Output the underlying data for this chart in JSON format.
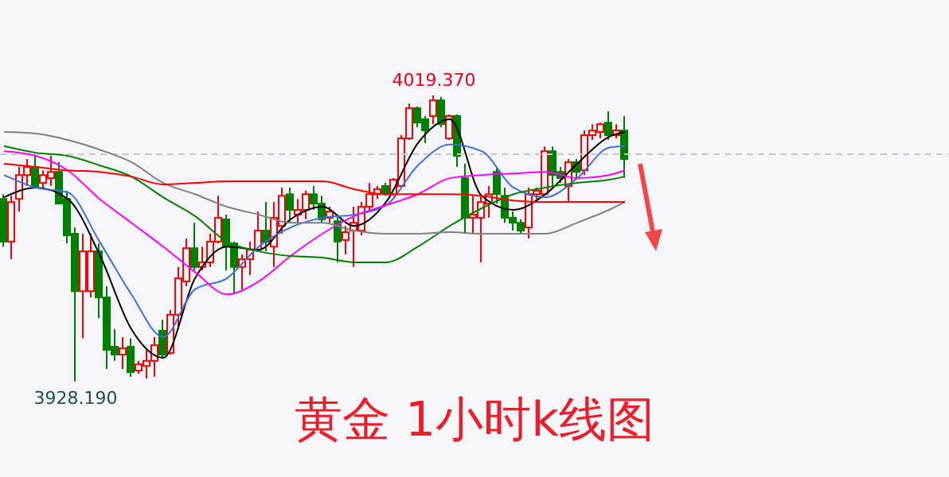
{
  "chart_data": {
    "type": "candlestick",
    "title": "黄金 1小时k线图",
    "categories": [
      null,
      null,
      null,
      null,
      null,
      null,
      null,
      null,
      null,
      null,
      null,
      null,
      null,
      null,
      null,
      null,
      null,
      null,
      null,
      null,
      null,
      null,
      null,
      null,
      null,
      null,
      null,
      null,
      null,
      null,
      null,
      null,
      null,
      null,
      null,
      null,
      null,
      null,
      null,
      null,
      null,
      null,
      null,
      null,
      null,
      null,
      null,
      null,
      null,
      null,
      null,
      null,
      null,
      null,
      null,
      null,
      null,
      null,
      null,
      null,
      null,
      null,
      null,
      null,
      null,
      null,
      null,
      null,
      null,
      null,
      null,
      null,
      null,
      null,
      null,
      null,
      null,
      null,
      null
    ],
    "ohlc": [
      [
        3986.4,
        3987.9,
        3971.2,
        3972.8
      ],
      [
        3972.8,
        3987.4,
        3967.2,
        3985.4
      ],
      [
        3986.4,
        3996.6,
        3982.4,
        3994.0
      ],
      [
        3994.0,
        3999.1,
        3990.5,
        3996.6
      ],
      [
        3996.6,
        4000.1,
        3990.0,
        3990.5
      ],
      [
        3991.5,
        3995.5,
        3990.0,
        3994.0
      ],
      [
        3993.0,
        4000.1,
        3990.5,
        3995.0
      ],
      [
        3995.0,
        3998.1,
        3984.9,
        3984.9
      ],
      [
        3986.4,
        3989.0,
        3972.2,
        3974.8
      ],
      [
        3975.3,
        3977.3,
        3928.19,
        3957.0
      ],
      [
        3957.0,
        3975.3,
        3942.0,
        3969.7
      ],
      [
        3957.0,
        3975.3,
        3955.0,
        3969.7
      ],
      [
        3969.7,
        3972.2,
        3948.4,
        3955.0
      ],
      [
        3955.0,
        3958.6,
        3932.2,
        3938.3
      ],
      [
        3939.3,
        3944.9,
        3934.8,
        3936.8
      ],
      [
        3936.8,
        3942.4,
        3932.2,
        3938.8
      ],
      [
        3939.3,
        3941.9,
        3929.7,
        3931.2
      ],
      [
        3931.7,
        3934.8,
        3930.7,
        3933.7
      ],
      [
        3933.2,
        3938.3,
        3929.2,
        3934.8
      ],
      [
        3934.8,
        3942.4,
        3929.7,
        3939.8
      ],
      [
        3944.4,
        3947.9,
        3935.8,
        3936.8
      ],
      [
        3937.3,
        3951.0,
        3936.8,
        3949.5
      ],
      [
        3949.5,
        3964.7,
        3944.9,
        3961.1
      ],
      [
        3960.1,
        3973.8,
        3958.6,
        3970.7
      ],
      [
        3970.7,
        3978.8,
        3963.6,
        3964.7
      ],
      [
        3964.7,
        3971.2,
        3963.6,
        3966.2
      ],
      [
        3966.2,
        3975.3,
        3964.7,
        3972.8
      ],
      [
        3972.8,
        3987.4,
        3972.2,
        3980.4
      ],
      [
        3979.9,
        3981.4,
        3963.6,
        3971.2
      ],
      [
        3972.2,
        3972.8,
        3956.0,
        3964.7
      ],
      [
        3964.7,
        3968.7,
        3957.6,
        3967.2
      ],
      [
        3967.2,
        3972.8,
        3962.1,
        3970.2
      ],
      [
        3970.2,
        3982.4,
        3969.7,
        3976.3
      ],
      [
        3976.3,
        3985.4,
        3969.7,
        3972.8
      ],
      [
        3971.2,
        3985.4,
        3964.7,
        3980.4
      ],
      [
        3977.8,
        3990.0,
        3975.3,
        3987.4
      ],
      [
        3987.9,
        3990.0,
        3978.8,
        3982.9
      ],
      [
        3981.4,
        3986.4,
        3978.8,
        3982.9
      ],
      [
        3982.9,
        3989.0,
        3979.9,
        3987.9
      ],
      [
        3987.9,
        3990.5,
        3982.9,
        3984.9
      ],
      [
        3984.9,
        3987.4,
        3978.8,
        3979.9
      ],
      [
        3980.4,
        3983.9,
        3978.8,
        3982.4
      ],
      [
        3979.3,
        3981.4,
        3966.2,
        3972.8
      ],
      [
        3973.3,
        3977.8,
        3968.7,
        3975.8
      ],
      [
        3976.3,
        3983.9,
        3964.7,
        3978.8
      ],
      [
        3976.3,
        3985.4,
        3974.8,
        3983.9
      ],
      [
        3983.9,
        3991.5,
        3982.9,
        3987.9
      ],
      [
        3987.9,
        3990.5,
        3986.4,
        3989.5
      ],
      [
        3990.5,
        3991.5,
        3987.4,
        3987.9
      ],
      [
        3987.9,
        3993.0,
        3987.4,
        3992.5
      ],
      [
        3990.5,
        4006.7,
        3990.0,
        4005.7
      ],
      [
        4005.7,
        4016.8,
        4005.2,
        4015.3
      ],
      [
        4015.3,
        4015.8,
        4009.2,
        4010.7
      ],
      [
        4011.8,
        4012.8,
        4004.2,
        4008.2
      ],
      [
        4012.8,
        4019.37,
        4010.2,
        4017.8
      ],
      [
        4017.8,
        4018.9,
        4009.2,
        4010.2
      ],
      [
        4005.7,
        4013.3,
        4005.2,
        4012.8
      ],
      [
        4012.8,
        4013.3,
        3996.6,
        4000.1
      ],
      [
        3993.0,
        3997.6,
        3975.3,
        3980.4
      ],
      [
        3980.4,
        3987.4,
        3975.3,
        3981.4
      ],
      [
        3980.4,
        3987.4,
        3966.2,
        3985.4
      ],
      [
        3984.9,
        3990.5,
        3980.4,
        3987.9
      ],
      [
        3995.0,
        3996.6,
        3984.9,
        3987.9
      ],
      [
        3987.4,
        3990.0,
        3978.8,
        3980.4
      ],
      [
        3980.4,
        3982.4,
        3976.3,
        3978.8
      ],
      [
        3978.8,
        3979.9,
        3975.3,
        3976.3
      ],
      [
        3977.3,
        3990.0,
        3973.8,
        3987.9
      ],
      [
        3987.9,
        3990.0,
        3986.4,
        3989.0
      ],
      [
        3987.9,
        4003.1,
        3987.4,
        4001.6
      ],
      [
        4001.6,
        4003.1,
        3990.5,
        3994.0
      ],
      [
        3995.0,
        3996.6,
        3991.5,
        3993.0
      ],
      [
        3990.5,
        3999.1,
        3985.4,
        3998.1
      ],
      [
        3998.1,
        3999.1,
        3993.0,
        3995.0
      ],
      [
        3995.5,
        4008.2,
        3994.0,
        4006.7
      ],
      [
        4006.7,
        4010.2,
        4005.2,
        4008.2
      ],
      [
        4007.7,
        4010.7,
        4005.7,
        4010.2
      ],
      [
        4010.7,
        4014.3,
        4005.2,
        4006.7
      ],
      [
        4006.7,
        4010.2,
        4005.7,
        4008.2
      ],
      [
        4008.2,
        4012.8,
        3993.0,
        3999.1
      ]
    ],
    "series": [
      {
        "type": "line",
        "color": "#000000",
        "values": [
          3986.9,
          null,
          null,
          null,
          3990.0,
          null,
          null,
          null,
          3986.4,
          null,
          null,
          null,
          3968.7,
          null,
          null,
          null,
          3944.9,
          null,
          null,
          null,
          3935.8,
          null,
          null,
          null,
          3961.1,
          null,
          null,
          null,
          3971.2,
          null,
          null,
          null,
          3970.2,
          null,
          null,
          null,
          3979.9,
          null,
          null,
          null,
          3983.9,
          null,
          null,
          null,
          3977.8,
          null,
          null,
          null,
          3985.4,
          null,
          null,
          null,
          4004.2,
          null,
          null,
          null,
          4011.8,
          null,
          null,
          null,
          3987.4,
          null,
          null,
          null,
          3982.9,
          null,
          null,
          null,
          3987.9,
          null,
          null,
          null,
          3997.6,
          null,
          null,
          null,
          4006.2,
          null,
          4007.7
        ]
      },
      {
        "type": "line",
        "color": "#3c6fdc",
        "values": [
          3994.0,
          null,
          null,
          null,
          3990.0,
          null,
          null,
          null,
          3988.5,
          null,
          null,
          null,
          3972.8,
          null,
          null,
          null,
          3956.0,
          null,
          null,
          null,
          3942.4,
          null,
          null,
          null,
          3957.6,
          null,
          null,
          null,
          3961.1,
          null,
          null,
          null,
          3971.2,
          null,
          null,
          null,
          3977.3,
          null,
          null,
          null,
          3980.4,
          null,
          null,
          null,
          3981.4,
          null,
          null,
          null,
          3984.4,
          null,
          null,
          null,
          3997.1,
          null,
          null,
          null,
          4003.7,
          null,
          null,
          null,
          4001.6,
          null,
          null,
          null,
          3990.0,
          null,
          null,
          null,
          3986.9,
          null,
          null,
          null,
          3993.0,
          null,
          null,
          null,
          4002.7,
          null,
          4003.2
        ]
      },
      {
        "type": "line",
        "color": "#ff00ff",
        "values": [
          4001.6,
          null,
          null,
          null,
          4000.1,
          null,
          null,
          null,
          3995.5,
          null,
          null,
          null,
          3986.4,
          null,
          null,
          null,
          3978.8,
          null,
          null,
          null,
          3971.2,
          null,
          null,
          null,
          3963.1,
          null,
          null,
          null,
          3956.0,
          null,
          null,
          null,
          3960.1,
          null,
          null,
          null,
          3968.2,
          null,
          null,
          null,
          3975.3,
          null,
          null,
          null,
          3980.9,
          null,
          null,
          null,
          3984.4,
          null,
          null,
          null,
          3987.9,
          null,
          null,
          null,
          3993.0,
          null,
          null,
          null,
          3994.0,
          null,
          null,
          null,
          3994.5,
          null,
          null,
          null,
          3995.0,
          null,
          null,
          null,
          3993.0,
          null,
          null,
          null,
          3994.0,
          null,
          3995.5
        ]
      },
      {
        "type": "line",
        "color": "#008000",
        "values": [
          4003.2,
          null,
          null,
          null,
          4001.1,
          null,
          null,
          null,
          4000.1,
          null,
          null,
          null,
          3997.1,
          null,
          null,
          null,
          3993.5,
          null,
          null,
          null,
          3986.9,
          null,
          null,
          null,
          3980.9,
          null,
          null,
          null,
          3972.8,
          null,
          null,
          null,
          3969.7,
          null,
          null,
          null,
          3968.2,
          null,
          null,
          null,
          3967.7,
          null,
          null,
          null,
          3966.2,
          null,
          null,
          null,
          3966.2,
          null,
          null,
          null,
          3971.2,
          null,
          null,
          null,
          3977.8,
          null,
          null,
          null,
          3983.4,
          null,
          null,
          null,
          3987.9,
          null,
          null,
          null,
          3990.0,
          null,
          null,
          null,
          3991.5,
          null,
          null,
          null,
          3992.5,
          null,
          3993.5
        ]
      },
      {
        "type": "line",
        "color": "#808080",
        "values": [
          4007.7,
          null,
          null,
          null,
          4007.2,
          null,
          null,
          null,
          4005.2,
          null,
          null,
          null,
          4002.1,
          null,
          null,
          null,
          3998.1,
          null,
          null,
          null,
          3991.5,
          null,
          null,
          null,
          3987.9,
          null,
          null,
          null,
          3983.9,
          null,
          null,
          null,
          3981.4,
          null,
          null,
          null,
          3978.8,
          null,
          null,
          null,
          3978.8,
          null,
          null,
          null,
          3976.3,
          null,
          null,
          null,
          3975.3,
          null,
          null,
          null,
          3975.3,
          null,
          null,
          null,
          3975.8,
          null,
          null,
          null,
          3975.3,
          null,
          null,
          null,
          3975.3,
          null,
          null,
          null,
          3975.3,
          null,
          null,
          null,
          3978.8,
          null,
          null,
          null,
          3982.9,
          null,
          3985.4
        ]
      },
      {
        "type": "line",
        "color": "#ff0000",
        "values": [
          3997.6,
          null,
          null,
          null,
          3996.6,
          null,
          null,
          null,
          3995.5,
          null,
          null,
          null,
          3995.0,
          null,
          null,
          null,
          3993.5,
          null,
          null,
          null,
          3991.0,
          null,
          null,
          null,
          3991.5,
          null,
          null,
          null,
          3992.0,
          null,
          null,
          null,
          3992.0,
          null,
          null,
          null,
          3992.0,
          null,
          null,
          null,
          3992.0,
          null,
          null,
          null,
          3989.5,
          null,
          null,
          null,
          3987.9,
          null,
          null,
          null,
          3987.9,
          null,
          null,
          null,
          3987.9,
          null,
          null,
          null,
          3987.4,
          null,
          null,
          null,
          3985.9,
          null,
          null,
          null,
          3985.4,
          null,
          null,
          null,
          3985.4,
          null,
          null,
          null,
          3985.4,
          null,
          3985.4
        ]
      }
    ],
    "annotations": [
      {
        "text": "4019.370",
        "y": 4019.37
      },
      {
        "text": "3928.190",
        "y": 3928.19
      }
    ],
    "ref_lines": [
      {
        "axis": "y",
        "value": 4000.6,
        "color": "#c8c8c8",
        "line_style": "dashed"
      }
    ]
  }
}
